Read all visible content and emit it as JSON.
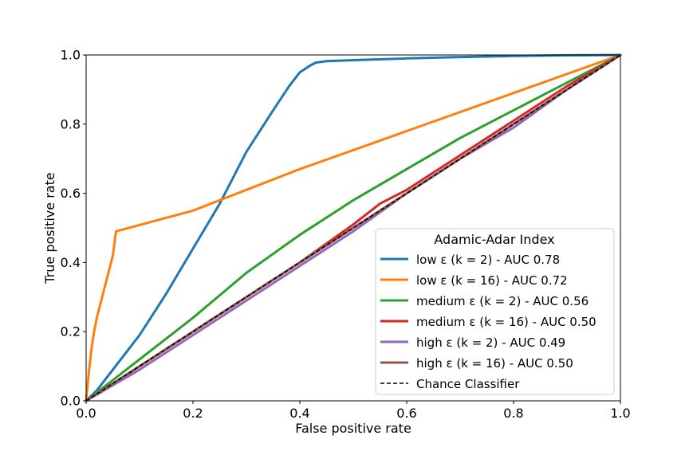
{
  "chart_data": {
    "type": "line",
    "title": "",
    "xlabel": "False positive rate",
    "ylabel": "True positive rate",
    "xlim": [
      0.0,
      1.0
    ],
    "ylim": [
      0.0,
      1.0
    ],
    "xticks": [
      "0.0",
      "0.2",
      "0.4",
      "0.6",
      "0.8",
      "1.0"
    ],
    "yticks": [
      "0.0",
      "0.2",
      "0.4",
      "0.6",
      "0.8",
      "1.0"
    ],
    "grid": false,
    "legend": {
      "title": "Adamic-Adar Index",
      "placement": "lower-right"
    },
    "series": [
      {
        "name": "low ε (k = 2) - AUC 0.78",
        "color": "#1f77b4",
        "x": [
          0.0,
          0.02,
          0.05,
          0.1,
          0.15,
          0.2,
          0.25,
          0.3,
          0.35,
          0.38,
          0.4,
          0.42,
          0.43,
          0.45,
          0.5,
          0.6,
          0.7,
          0.8,
          0.9,
          1.0
        ],
        "y": [
          0.0,
          0.03,
          0.09,
          0.19,
          0.31,
          0.44,
          0.57,
          0.72,
          0.84,
          0.91,
          0.95,
          0.97,
          0.978,
          0.982,
          0.985,
          0.99,
          0.994,
          0.997,
          0.999,
          1.0
        ]
      },
      {
        "name": "low ε (k = 16) - AUC 0.72",
        "color": "#ff7f0e",
        "x": [
          0.0,
          0.005,
          0.01,
          0.015,
          0.02,
          0.03,
          0.04,
          0.05,
          0.056,
          0.2,
          0.4,
          0.6,
          0.8,
          1.0
        ],
        "y": [
          0.0,
          0.08,
          0.15,
          0.2,
          0.24,
          0.3,
          0.36,
          0.42,
          0.49,
          0.55,
          0.67,
          0.78,
          0.89,
          1.0
        ]
      },
      {
        "name": "medium ε (k = 2) - AUC 0.56",
        "color": "#2ca02c",
        "x": [
          0.0,
          0.05,
          0.1,
          0.2,
          0.3,
          0.4,
          0.5,
          0.6,
          0.7,
          0.8,
          0.9,
          1.0
        ],
        "y": [
          0.0,
          0.06,
          0.12,
          0.24,
          0.37,
          0.48,
          0.58,
          0.67,
          0.76,
          0.84,
          0.92,
          1.0
        ]
      },
      {
        "name": "medium ε (k = 16) - AUC 0.50",
        "color": "#d62728",
        "x": [
          0.0,
          0.1,
          0.2,
          0.3,
          0.4,
          0.5,
          0.55,
          0.6,
          0.7,
          0.8,
          0.9,
          1.0
        ],
        "y": [
          0.0,
          0.1,
          0.2,
          0.3,
          0.4,
          0.51,
          0.57,
          0.61,
          0.71,
          0.81,
          0.91,
          1.0
        ]
      },
      {
        "name": "high ε (k = 2) - AUC 0.49",
        "color": "#9467bd",
        "x": [
          0.0,
          0.1,
          0.2,
          0.3,
          0.4,
          0.5,
          0.6,
          0.7,
          0.8,
          0.9,
          1.0
        ],
        "y": [
          0.0,
          0.09,
          0.19,
          0.29,
          0.39,
          0.49,
          0.6,
          0.7,
          0.79,
          0.9,
          1.0
        ]
      },
      {
        "name": "high ε (k = 16) - AUC 0.50",
        "color": "#8c564b",
        "x": [
          0.0,
          0.1,
          0.2,
          0.3,
          0.4,
          0.5,
          0.6,
          0.7,
          0.8,
          0.9,
          1.0
        ],
        "y": [
          0.0,
          0.1,
          0.2,
          0.3,
          0.4,
          0.5,
          0.6,
          0.7,
          0.8,
          0.9,
          1.0
        ]
      },
      {
        "name": "Chance Classifier",
        "color": "#000000",
        "dashed": true,
        "x": [
          0.0,
          1.0
        ],
        "y": [
          0.0,
          1.0
        ]
      }
    ]
  }
}
